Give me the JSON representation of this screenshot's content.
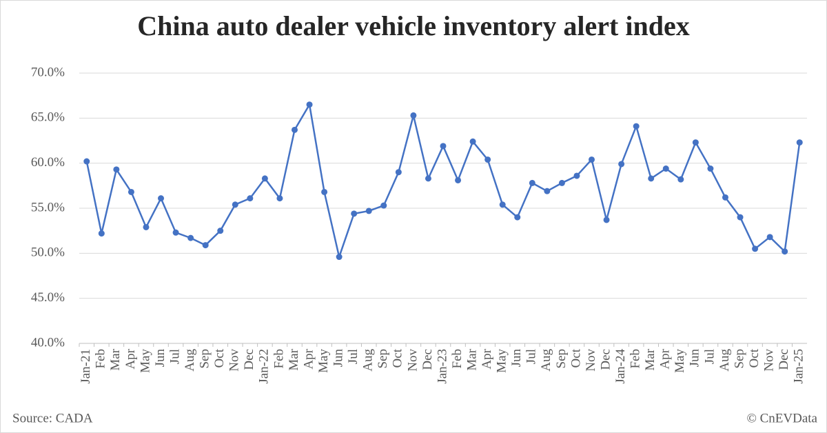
{
  "chart_data": {
    "type": "line",
    "title": "China auto dealer vehicle inventory alert index",
    "source": "Source: CADA",
    "credit": "© CnEVData",
    "categories": [
      "Jan-21",
      "Feb",
      "Mar",
      "Apr",
      "May",
      "Jun",
      "Jul",
      "Aug",
      "Sep",
      "Oct",
      "Nov",
      "Dec",
      "Jan-22",
      "Feb",
      "Mar",
      "Apr",
      "May",
      "Jun",
      "Jul",
      "Aug",
      "Sep",
      "Oct",
      "Nov",
      "Dec",
      "Jan-23",
      "Feb",
      "Mar",
      "Apr",
      "May",
      "Jun",
      "Jul",
      "Aug",
      "Sep",
      "Oct",
      "Nov",
      "Dec",
      "Jan-24",
      "Feb",
      "Mar",
      "Apr",
      "May",
      "Jun",
      "Jul",
      "Aug",
      "Sep",
      "Oct",
      "Nov",
      "Dec",
      "Jan-25"
    ],
    "series": [
      {
        "name": "Inventory alert index",
        "color": "#4472c4",
        "values": [
          60.2,
          52.2,
          59.3,
          56.8,
          52.9,
          56.1,
          52.3,
          51.7,
          50.9,
          52.5,
          55.4,
          56.1,
          58.3,
          56.1,
          63.7,
          66.5,
          56.8,
          49.6,
          54.4,
          54.7,
          55.3,
          59.0,
          65.3,
          58.3,
          61.9,
          58.1,
          62.4,
          60.4,
          55.4,
          54.0,
          57.8,
          56.9,
          57.8,
          58.6,
          60.4,
          53.7,
          59.9,
          64.1,
          58.3,
          59.4,
          58.2,
          62.3,
          59.4,
          56.2,
          54.0,
          50.5,
          51.8,
          50.2,
          62.3
        ]
      }
    ],
    "ylim": [
      40,
      70
    ],
    "yticks": [
      {
        "value": 40,
        "label": "40.0%"
      },
      {
        "value": 45,
        "label": "45.0%"
      },
      {
        "value": 50,
        "label": "50.0%"
      },
      {
        "value": 55,
        "label": "55.0%"
      },
      {
        "value": 60,
        "label": "60.0%"
      },
      {
        "value": 65,
        "label": "65.0%"
      },
      {
        "value": 70,
        "label": "70.0%"
      }
    ],
    "grid": true
  }
}
